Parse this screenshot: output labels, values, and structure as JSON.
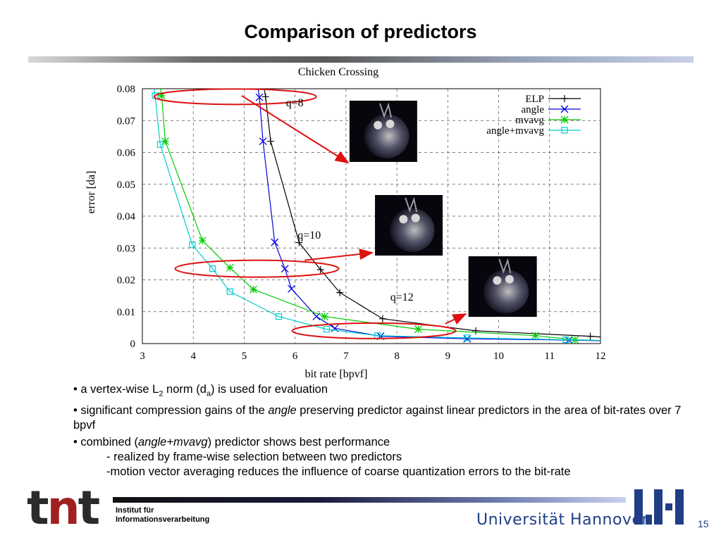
{
  "slide": {
    "title": "Comparison of predictors",
    "page_number": "15"
  },
  "chart_data": {
    "type": "line",
    "title": "Chicken Crossing",
    "xlabel": "bit rate [bpvf]",
    "ylabel": "error [da]",
    "xlim": [
      3,
      12
    ],
    "ylim": [
      0,
      0.08
    ],
    "x_ticks": [
      "3",
      "4",
      "5",
      "6",
      "7",
      "8",
      "9",
      "10",
      "11",
      "12"
    ],
    "y_ticks": [
      "0",
      "0.01",
      "0.02",
      "0.03",
      "0.04",
      "0.05",
      "0.06",
      "0.07",
      "0.08"
    ],
    "grid": true,
    "legend_position": "top-right",
    "series": [
      {
        "name": "ELP",
        "color": "#000000",
        "marker": "plus",
        "x": [
          5.42,
          5.52,
          6.08,
          6.5,
          6.88,
          7.72,
          9.55,
          11.8
        ],
        "y": [
          0.0775,
          0.0635,
          0.0317,
          0.0232,
          0.016,
          0.0078,
          0.004,
          0.0023
        ]
      },
      {
        "name": "angle",
        "color": "#0000dd",
        "marker": "x",
        "x": [
          5.3,
          5.37,
          5.6,
          5.8,
          5.93,
          6.42,
          6.78,
          7.68,
          9.38,
          11.38
        ],
        "y": [
          0.0773,
          0.0635,
          0.0318,
          0.0235,
          0.0172,
          0.0085,
          0.0048,
          0.0023,
          0.0015,
          0.0011
        ]
      },
      {
        "name": "mvavg",
        "color": "#00cc00",
        "marker": "star",
        "x": [
          3.38,
          3.45,
          4.18,
          4.72,
          5.18,
          6.58,
          8.42,
          10.72,
          11.5
        ],
        "y": [
          0.0778,
          0.0635,
          0.0323,
          0.0238,
          0.017,
          0.0085,
          0.0045,
          0.0025,
          0.0012
        ]
      },
      {
        "name": "angle+mvavg",
        "color": "#00cccc",
        "marker": "square",
        "x": [
          3.25,
          3.35,
          3.98,
          4.38,
          4.72,
          5.68,
          6.62,
          7.62,
          9.38,
          11.32
        ],
        "y": [
          0.0778,
          0.0625,
          0.031,
          0.0235,
          0.0163,
          0.0085,
          0.0045,
          0.0025,
          0.0018,
          0.0012
        ]
      }
    ],
    "annotations": [
      {
        "label": "q=8",
        "x": 4.0,
        "y": 0.0775
      },
      {
        "label": "q=10",
        "x": 5.7,
        "y": 0.024
      },
      {
        "label": "q=12",
        "x": 7.0,
        "y": 0.004
      }
    ]
  },
  "bullets": [
    {
      "parts": [
        {
          "t": "• a vertex-wise L"
        },
        {
          "t": "2",
          "sub": true
        },
        {
          "t": " norm (d"
        },
        {
          "t": "a",
          "sub": true
        },
        {
          "t": ") is used for evaluation"
        }
      ]
    },
    {
      "parts": [
        {
          "t": "• significant compression gains of the "
        },
        {
          "t": "angle",
          "i": true
        },
        {
          "t": " preserving predictor against linear predictors in the area of bit-rates over 7 bpvf"
        }
      ]
    },
    {
      "parts": [
        {
          "t": "• combined  ("
        },
        {
          "t": "angle+mvavg",
          "i": true
        },
        {
          "t": ") predictor shows best performance"
        }
      ]
    }
  ],
  "sub_bullets": [
    "- realized by frame-wise selection between two predictors",
    "-motion vector averaging reduces the influence of coarse quantization errors  to the bit-rate"
  ],
  "footer": {
    "logo_text_1": "t",
    "logo_text_2": "n",
    "logo_text_3": "t",
    "institute_line1": "Institut für",
    "institute_line2": "Informationsverarbeitung",
    "university": "Universität Hannover",
    "colors": {
      "accent": "#1f3e86",
      "logo_red": "#a02020"
    }
  }
}
